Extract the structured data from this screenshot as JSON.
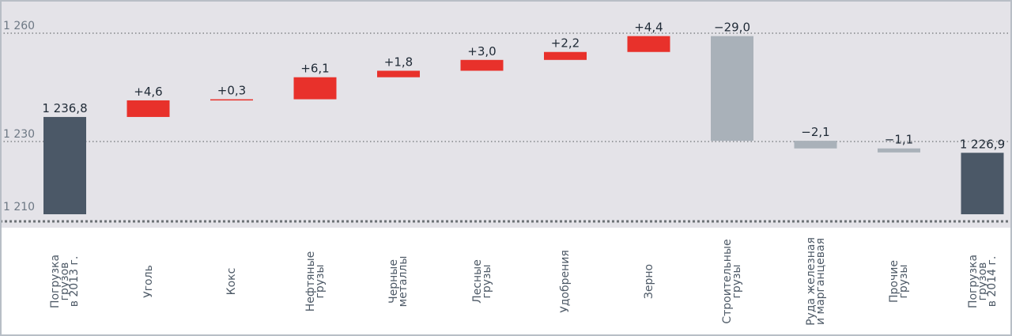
{
  "chart_data": {
    "type": "waterfall",
    "yticks": [
      "1 260",
      "1 230",
      "1 210"
    ],
    "ytick_values": [
      1260,
      1230,
      1210
    ],
    "start": {
      "category": "Погрузка\nгрузов\nв 2013 г.",
      "value": 1236.8,
      "label": "1 236,8"
    },
    "end": {
      "category": "Погрузка\nгрузов\nв 2014 г.",
      "value": 1226.9,
      "label": "1 226,9"
    },
    "steps": [
      {
        "category": "Уголь",
        "delta": 4.6,
        "label": "+4,6"
      },
      {
        "category": "Кокс",
        "delta": 0.3,
        "label": "+0,3"
      },
      {
        "category": "Нефтяные\nгрузы",
        "delta": 6.1,
        "label": "+6,1"
      },
      {
        "category": "Черные\nметаллы",
        "delta": 1.8,
        "label": "+1,8"
      },
      {
        "category": "Лесные\nгрузы",
        "delta": 3.0,
        "label": "+3,0"
      },
      {
        "category": "Удобрения",
        "delta": 2.2,
        "label": "+2,2"
      },
      {
        "category": "Зерно",
        "delta": 4.4,
        "label": "+4,4"
      },
      {
        "category": "Строительные\nгрузы",
        "delta": -29.0,
        "label": "−29,0"
      },
      {
        "category": "Руда железная\nи марганцевая",
        "delta": -2.1,
        "label": "−2,1"
      },
      {
        "category": "Прочие\nгрузы",
        "delta": -1.1,
        "label": "−1,1"
      }
    ]
  },
  "colors": {
    "total": "#4b5867",
    "increase": "#e8312b",
    "decrease": "#a9b1b9",
    "background": "#e4e3e8",
    "text": "#1f2a36",
    "axis_text": "#6d7884",
    "grid": "#6d7276"
  }
}
